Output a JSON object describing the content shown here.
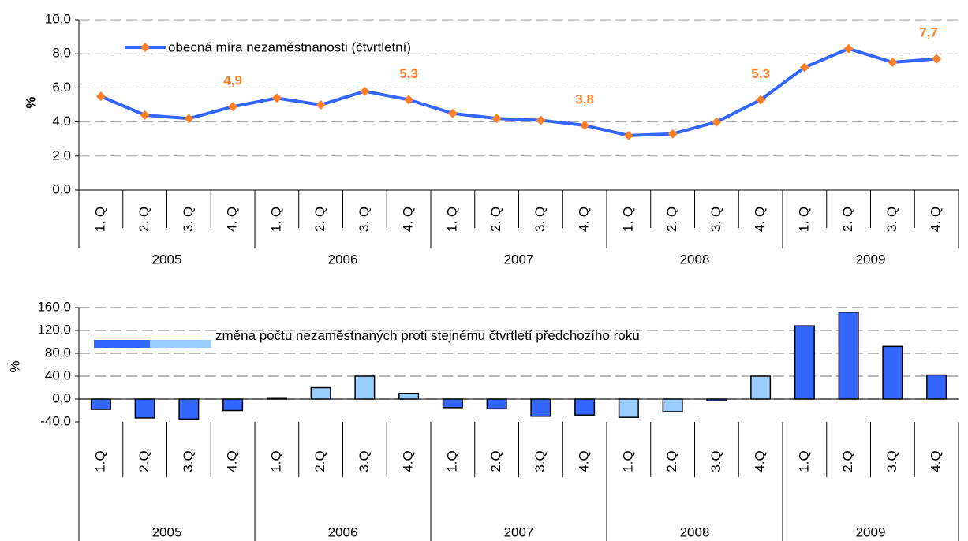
{
  "chart_data": [
    {
      "type": "line",
      "ylabel": "%",
      "categories": [
        "1. Q",
        "2. Q",
        "3. Q",
        "4. Q",
        "1. Q",
        "2. Q",
        "3. Q",
        "4. Q",
        "1. Q",
        "2. Q",
        "3. Q",
        "4. Q",
        "1. Q",
        "2. Q",
        "3. Q",
        "4. Q",
        "1. Q",
        "2. Q",
        "3. Q",
        "4. Q"
      ],
      "years": [
        "2005",
        "2006",
        "2007",
        "2008",
        "2009"
      ],
      "series": [
        {
          "name": "obecná míra nezaměstnanosti (čtvrtletní)",
          "color": "#3366ff",
          "marker_color": "#ff7f27",
          "values": [
            5.5,
            4.4,
            4.2,
            4.9,
            5.4,
            5.0,
            5.8,
            5.3,
            4.5,
            4.2,
            4.1,
            3.8,
            3.2,
            3.3,
            4.0,
            5.3,
            7.2,
            8.3,
            7.5,
            7.7
          ],
          "value_labels": [
            null,
            null,
            null,
            "4,9",
            null,
            null,
            null,
            "5,3",
            null,
            null,
            null,
            "3,8",
            null,
            null,
            null,
            "5,3",
            null,
            null,
            null,
            "7,7"
          ]
        }
      ],
      "ylim": [
        0,
        10
      ],
      "yticks": [
        {
          "value": 0,
          "label": "0,0"
        },
        {
          "value": 2,
          "label": "2,0"
        },
        {
          "value": 4,
          "label": "4,0"
        },
        {
          "value": 6,
          "label": "6,0"
        },
        {
          "value": 8,
          "label": "8,0"
        },
        {
          "value": 10,
          "label": "10,0"
        }
      ],
      "grid": true
    },
    {
      "type": "bar",
      "ylabel": "%",
      "categories": [
        "1.Q",
        "2.Q",
        "3.Q",
        "4.Q",
        "1.Q",
        "2.Q",
        "3.Q",
        "4.Q",
        "1.Q",
        "2.Q",
        "3.Q",
        "4.Q",
        "1.Q",
        "2.Q",
        "3.Q",
        "4.Q",
        "1.Q",
        "2.Q",
        "3.Q",
        "4.Q"
      ],
      "years": [
        "2005",
        "2006",
        "2007",
        "2008",
        "2009"
      ],
      "series": [
        {
          "name": "změna počtu nezaměstnaných proti stejnému čtvrtletí předchozího roku",
          "legend_colors": [
            "#3366ff",
            "#99ccff"
          ],
          "values": [
            -18,
            -33,
            -35,
            -20,
            1,
            20,
            40,
            10,
            -15,
            -17,
            -30,
            -28,
            -32,
            -22,
            -3,
            40,
            128,
            152,
            92,
            42
          ],
          "colors": [
            "#3366ff",
            "#3366ff",
            "#3366ff",
            "#3366ff",
            "#99ccff",
            "#99ccff",
            "#99ccff",
            "#99ccff",
            "#3366ff",
            "#3366ff",
            "#3366ff",
            "#3366ff",
            "#99ccff",
            "#99ccff",
            "#3366ff",
            "#99ccff",
            "#3366ff",
            "#3366ff",
            "#3366ff",
            "#3366ff"
          ]
        }
      ],
      "ylim": [
        -40,
        160
      ],
      "yticks": [
        {
          "value": -40,
          "label": "-40,0"
        },
        {
          "value": 0,
          "label": "0,0"
        },
        {
          "value": 40,
          "label": "40,0"
        },
        {
          "value": 80,
          "label": "80,0"
        },
        {
          "value": 120,
          "label": "120,0"
        },
        {
          "value": 160,
          "label": "160,0"
        }
      ],
      "grid": true
    }
  ]
}
